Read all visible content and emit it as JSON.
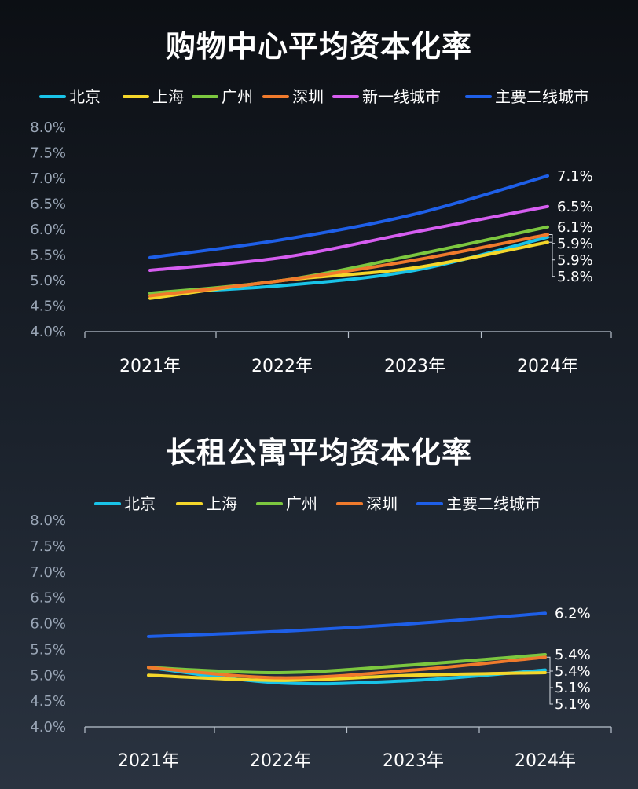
{
  "colors": {
    "beijing": "#19c3e8",
    "shanghai": "#f4d62a",
    "guangzhou": "#7cc73f",
    "shenzhen": "#f07a2c",
    "tier1": "#d65df0",
    "tier2": "#1e5fe8",
    "axis": "#b9c2cd",
    "tick_text": "#9aa6b6"
  },
  "chart_data": [
    {
      "type": "line",
      "title": "购物中心平均资本化率",
      "categories": [
        "2021年",
        "2022年",
        "2023年",
        "2024年"
      ],
      "ylim": [
        4.0,
        8.0
      ],
      "yticks": [
        "4.0%",
        "4.5%",
        "5.0%",
        "5.5%",
        "6.0%",
        "6.5%",
        "7.0%",
        "7.5%",
        "8.0%"
      ],
      "legend_position": "top",
      "series": [
        {
          "name": "北京",
          "values": [
            4.75,
            4.9,
            5.2,
            5.85
          ],
          "end_label": "5.9%",
          "color_key": "beijing"
        },
        {
          "name": "上海",
          "values": [
            4.65,
            5.0,
            5.25,
            5.75
          ],
          "end_label": "5.8%",
          "color_key": "shanghai"
        },
        {
          "name": "广州",
          "values": [
            4.75,
            5.0,
            5.5,
            6.05
          ],
          "end_label": "6.1%",
          "color_key": "guangzhou"
        },
        {
          "name": "深圳",
          "values": [
            4.7,
            5.0,
            5.4,
            5.9
          ],
          "end_label": "5.9%",
          "color_key": "shenzhen"
        },
        {
          "name": "新一线城市",
          "values": [
            5.2,
            5.45,
            5.95,
            6.45
          ],
          "end_label": "6.5%",
          "color_key": "tier1"
        },
        {
          "name": "主要二线城市",
          "values": [
            5.45,
            5.8,
            6.3,
            7.05
          ],
          "end_label": "7.1%",
          "color_key": "tier2"
        }
      ]
    },
    {
      "type": "line",
      "title": "长租公寓平均资本化率",
      "categories": [
        "2021年",
        "2022年",
        "2023年",
        "2024年"
      ],
      "ylim": [
        4.0,
        8.0
      ],
      "yticks": [
        "4.0%",
        "4.5%",
        "5.0%",
        "5.5%",
        "6.0%",
        "6.5%",
        "7.0%",
        "7.5%",
        "8.0%"
      ],
      "legend_position": "top",
      "series": [
        {
          "name": "北京",
          "values": [
            5.15,
            4.85,
            4.9,
            5.1
          ],
          "end_label": "5.1%",
          "color_key": "beijing"
        },
        {
          "name": "上海",
          "values": [
            5.0,
            4.9,
            5.0,
            5.05
          ],
          "end_label": "5.1%",
          "color_key": "shanghai"
        },
        {
          "name": "广州",
          "values": [
            5.15,
            5.05,
            5.2,
            5.4
          ],
          "end_label": "5.4%",
          "color_key": "guangzhou"
        },
        {
          "name": "深圳",
          "values": [
            5.15,
            4.95,
            5.1,
            5.35
          ],
          "end_label": "5.4%",
          "color_key": "shenzhen"
        },
        {
          "name": "主要二线城市",
          "values": [
            5.75,
            5.85,
            6.0,
            6.2
          ],
          "end_label": "6.2%",
          "color_key": "tier2"
        }
      ]
    }
  ]
}
